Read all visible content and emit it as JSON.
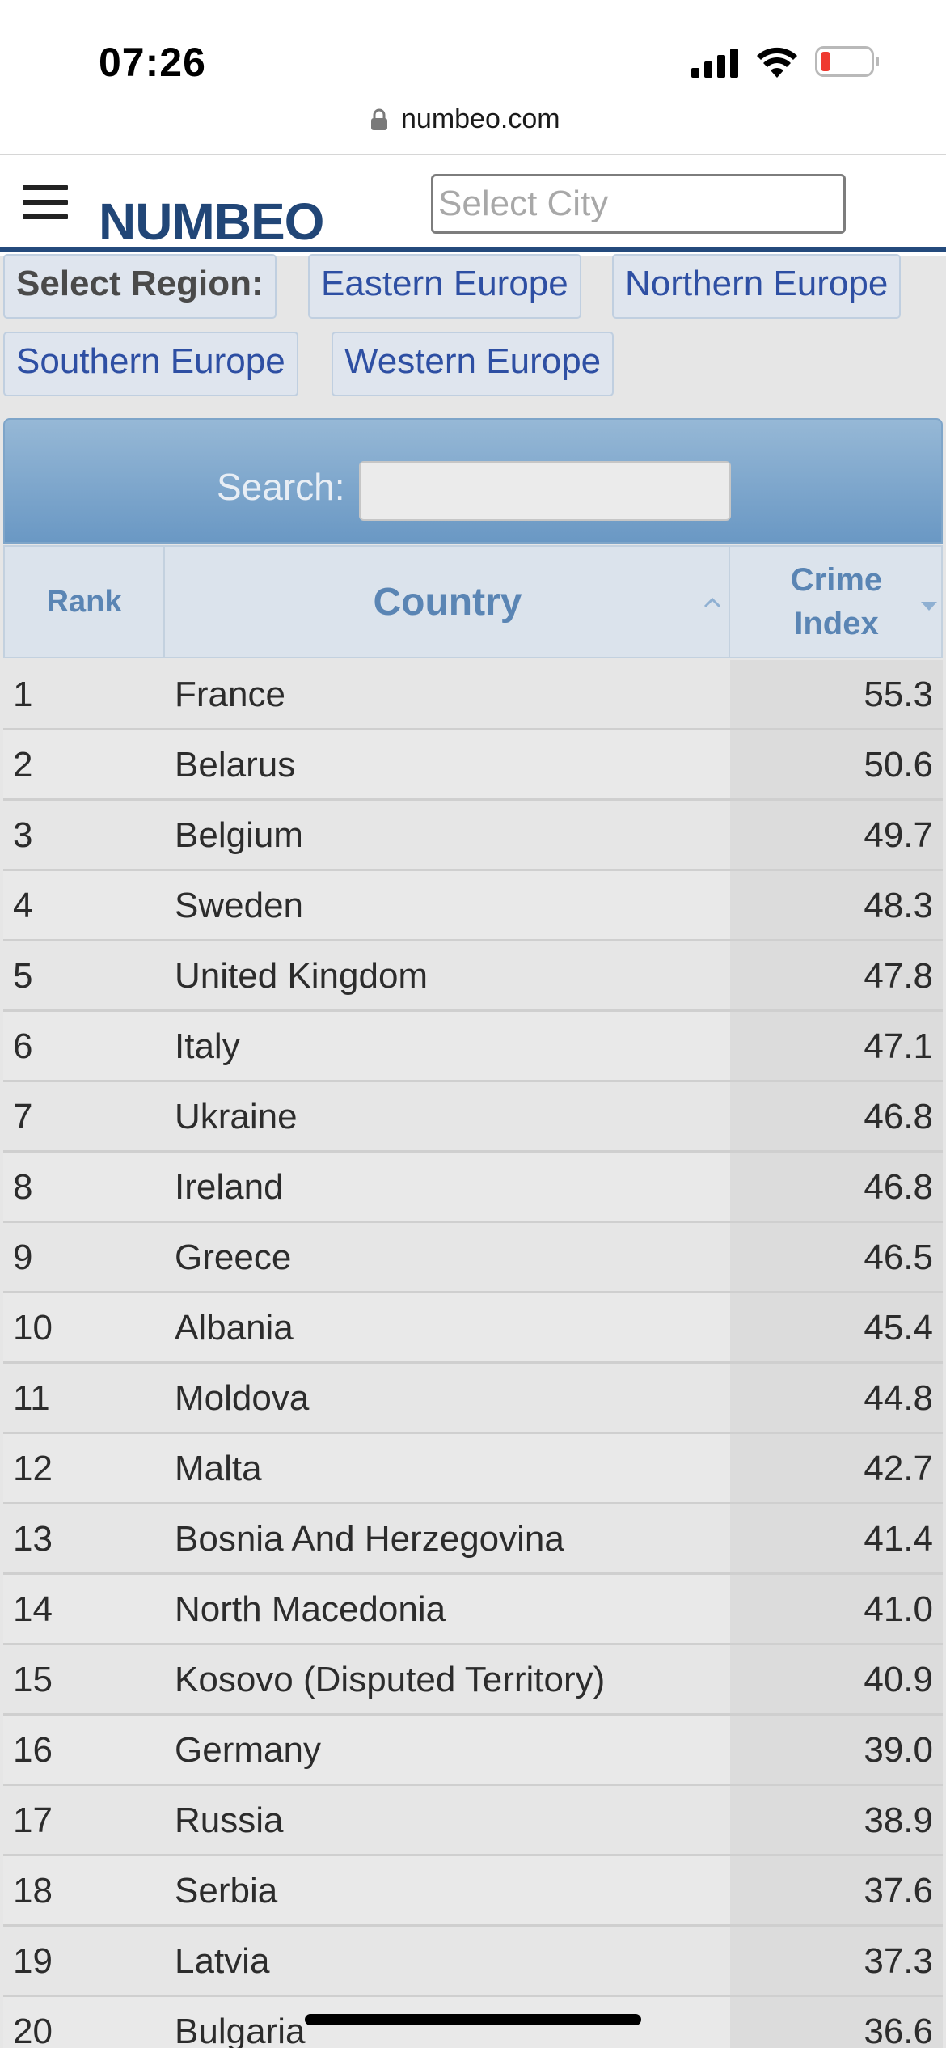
{
  "status_bar": {
    "time": "07:26"
  },
  "browser": {
    "url": "numbeo.com"
  },
  "header": {
    "logo": "NUMBEO",
    "city_placeholder": "Select City"
  },
  "region": {
    "label": "Select Region:",
    "options": [
      "Eastern Europe",
      "Northern Europe",
      "Southern Europe",
      "Western Europe"
    ]
  },
  "search": {
    "label": "Search:",
    "value": ""
  },
  "table": {
    "columns": [
      "Rank",
      "Country",
      "Crime Index"
    ],
    "rows": [
      {
        "rank": "1",
        "country": "France",
        "index": "55.3"
      },
      {
        "rank": "2",
        "country": "Belarus",
        "index": "50.6"
      },
      {
        "rank": "3",
        "country": "Belgium",
        "index": "49.7"
      },
      {
        "rank": "4",
        "country": "Sweden",
        "index": "48.3"
      },
      {
        "rank": "5",
        "country": "United Kingdom",
        "index": "47.8"
      },
      {
        "rank": "6",
        "country": "Italy",
        "index": "47.1"
      },
      {
        "rank": "7",
        "country": "Ukraine",
        "index": "46.8"
      },
      {
        "rank": "8",
        "country": "Ireland",
        "index": "46.8"
      },
      {
        "rank": "9",
        "country": "Greece",
        "index": "46.5"
      },
      {
        "rank": "10",
        "country": "Albania",
        "index": "45.4"
      },
      {
        "rank": "11",
        "country": "Moldova",
        "index": "44.8"
      },
      {
        "rank": "12",
        "country": "Malta",
        "index": "42.7"
      },
      {
        "rank": "13",
        "country": "Bosnia And Herzegovina",
        "index": "41.4"
      },
      {
        "rank": "14",
        "country": "North Macedonia",
        "index": "41.0"
      },
      {
        "rank": "15",
        "country": "Kosovo (Disputed Territory)",
        "index": "40.9"
      },
      {
        "rank": "16",
        "country": "Germany",
        "index": "39.0"
      },
      {
        "rank": "17",
        "country": "Russia",
        "index": "38.9"
      },
      {
        "rank": "18",
        "country": "Serbia",
        "index": "37.6"
      },
      {
        "rank": "19",
        "country": "Latvia",
        "index": "37.3"
      },
      {
        "rank": "20",
        "country": "Bulgaria",
        "index": "36.6"
      }
    ]
  },
  "colors": {
    "brand": "#214677",
    "header_border": "#244a7c",
    "link": "#2e4fa3",
    "table_header_text": "#5a85b4"
  },
  "icons": {
    "menu": "hamburger-icon",
    "lock": "lock-icon",
    "signal": "signal-icon",
    "wifi": "wifi-icon",
    "battery": "battery-icon"
  }
}
